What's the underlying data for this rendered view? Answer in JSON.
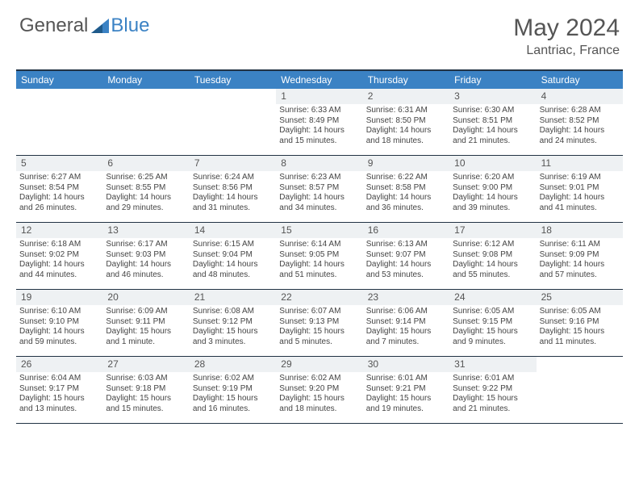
{
  "brand": {
    "part1": "General",
    "part2": "Blue"
  },
  "title": "May 2024",
  "location": "Lantriac, France",
  "colors": {
    "accent": "#3b82c4",
    "header_text": "#ffffff",
    "border": "#234",
    "daynum_bg": "#eef1f3"
  },
  "weekdays": [
    "Sunday",
    "Monday",
    "Tuesday",
    "Wednesday",
    "Thursday",
    "Friday",
    "Saturday"
  ],
  "weeks": [
    [
      {
        "empty": true
      },
      {
        "empty": true
      },
      {
        "empty": true
      },
      {
        "n": "1",
        "sr": "Sunrise: 6:33 AM",
        "ss": "Sunset: 8:49 PM",
        "d1": "Daylight: 14 hours",
        "d2": "and 15 minutes."
      },
      {
        "n": "2",
        "sr": "Sunrise: 6:31 AM",
        "ss": "Sunset: 8:50 PM",
        "d1": "Daylight: 14 hours",
        "d2": "and 18 minutes."
      },
      {
        "n": "3",
        "sr": "Sunrise: 6:30 AM",
        "ss": "Sunset: 8:51 PM",
        "d1": "Daylight: 14 hours",
        "d2": "and 21 minutes."
      },
      {
        "n": "4",
        "sr": "Sunrise: 6:28 AM",
        "ss": "Sunset: 8:52 PM",
        "d1": "Daylight: 14 hours",
        "d2": "and 24 minutes."
      }
    ],
    [
      {
        "n": "5",
        "sr": "Sunrise: 6:27 AM",
        "ss": "Sunset: 8:54 PM",
        "d1": "Daylight: 14 hours",
        "d2": "and 26 minutes."
      },
      {
        "n": "6",
        "sr": "Sunrise: 6:25 AM",
        "ss": "Sunset: 8:55 PM",
        "d1": "Daylight: 14 hours",
        "d2": "and 29 minutes."
      },
      {
        "n": "7",
        "sr": "Sunrise: 6:24 AM",
        "ss": "Sunset: 8:56 PM",
        "d1": "Daylight: 14 hours",
        "d2": "and 31 minutes."
      },
      {
        "n": "8",
        "sr": "Sunrise: 6:23 AM",
        "ss": "Sunset: 8:57 PM",
        "d1": "Daylight: 14 hours",
        "d2": "and 34 minutes."
      },
      {
        "n": "9",
        "sr": "Sunrise: 6:22 AM",
        "ss": "Sunset: 8:58 PM",
        "d1": "Daylight: 14 hours",
        "d2": "and 36 minutes."
      },
      {
        "n": "10",
        "sr": "Sunrise: 6:20 AM",
        "ss": "Sunset: 9:00 PM",
        "d1": "Daylight: 14 hours",
        "d2": "and 39 minutes."
      },
      {
        "n": "11",
        "sr": "Sunrise: 6:19 AM",
        "ss": "Sunset: 9:01 PM",
        "d1": "Daylight: 14 hours",
        "d2": "and 41 minutes."
      }
    ],
    [
      {
        "n": "12",
        "sr": "Sunrise: 6:18 AM",
        "ss": "Sunset: 9:02 PM",
        "d1": "Daylight: 14 hours",
        "d2": "and 44 minutes."
      },
      {
        "n": "13",
        "sr": "Sunrise: 6:17 AM",
        "ss": "Sunset: 9:03 PM",
        "d1": "Daylight: 14 hours",
        "d2": "and 46 minutes."
      },
      {
        "n": "14",
        "sr": "Sunrise: 6:15 AM",
        "ss": "Sunset: 9:04 PM",
        "d1": "Daylight: 14 hours",
        "d2": "and 48 minutes."
      },
      {
        "n": "15",
        "sr": "Sunrise: 6:14 AM",
        "ss": "Sunset: 9:05 PM",
        "d1": "Daylight: 14 hours",
        "d2": "and 51 minutes."
      },
      {
        "n": "16",
        "sr": "Sunrise: 6:13 AM",
        "ss": "Sunset: 9:07 PM",
        "d1": "Daylight: 14 hours",
        "d2": "and 53 minutes."
      },
      {
        "n": "17",
        "sr": "Sunrise: 6:12 AM",
        "ss": "Sunset: 9:08 PM",
        "d1": "Daylight: 14 hours",
        "d2": "and 55 minutes."
      },
      {
        "n": "18",
        "sr": "Sunrise: 6:11 AM",
        "ss": "Sunset: 9:09 PM",
        "d1": "Daylight: 14 hours",
        "d2": "and 57 minutes."
      }
    ],
    [
      {
        "n": "19",
        "sr": "Sunrise: 6:10 AM",
        "ss": "Sunset: 9:10 PM",
        "d1": "Daylight: 14 hours",
        "d2": "and 59 minutes."
      },
      {
        "n": "20",
        "sr": "Sunrise: 6:09 AM",
        "ss": "Sunset: 9:11 PM",
        "d1": "Daylight: 15 hours",
        "d2": "and 1 minute."
      },
      {
        "n": "21",
        "sr": "Sunrise: 6:08 AM",
        "ss": "Sunset: 9:12 PM",
        "d1": "Daylight: 15 hours",
        "d2": "and 3 minutes."
      },
      {
        "n": "22",
        "sr": "Sunrise: 6:07 AM",
        "ss": "Sunset: 9:13 PM",
        "d1": "Daylight: 15 hours",
        "d2": "and 5 minutes."
      },
      {
        "n": "23",
        "sr": "Sunrise: 6:06 AM",
        "ss": "Sunset: 9:14 PM",
        "d1": "Daylight: 15 hours",
        "d2": "and 7 minutes."
      },
      {
        "n": "24",
        "sr": "Sunrise: 6:05 AM",
        "ss": "Sunset: 9:15 PM",
        "d1": "Daylight: 15 hours",
        "d2": "and 9 minutes."
      },
      {
        "n": "25",
        "sr": "Sunrise: 6:05 AM",
        "ss": "Sunset: 9:16 PM",
        "d1": "Daylight: 15 hours",
        "d2": "and 11 minutes."
      }
    ],
    [
      {
        "n": "26",
        "sr": "Sunrise: 6:04 AM",
        "ss": "Sunset: 9:17 PM",
        "d1": "Daylight: 15 hours",
        "d2": "and 13 minutes."
      },
      {
        "n": "27",
        "sr": "Sunrise: 6:03 AM",
        "ss": "Sunset: 9:18 PM",
        "d1": "Daylight: 15 hours",
        "d2": "and 15 minutes."
      },
      {
        "n": "28",
        "sr": "Sunrise: 6:02 AM",
        "ss": "Sunset: 9:19 PM",
        "d1": "Daylight: 15 hours",
        "d2": "and 16 minutes."
      },
      {
        "n": "29",
        "sr": "Sunrise: 6:02 AM",
        "ss": "Sunset: 9:20 PM",
        "d1": "Daylight: 15 hours",
        "d2": "and 18 minutes."
      },
      {
        "n": "30",
        "sr": "Sunrise: 6:01 AM",
        "ss": "Sunset: 9:21 PM",
        "d1": "Daylight: 15 hours",
        "d2": "and 19 minutes."
      },
      {
        "n": "31",
        "sr": "Sunrise: 6:01 AM",
        "ss": "Sunset: 9:22 PM",
        "d1": "Daylight: 15 hours",
        "d2": "and 21 minutes."
      },
      {
        "empty": true
      }
    ]
  ]
}
